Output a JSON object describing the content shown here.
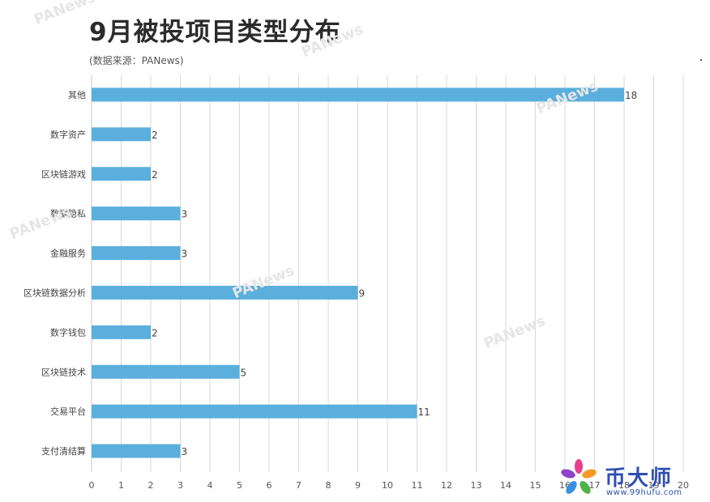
{
  "header": {
    "title": "9月被投项目类型分布",
    "subtitle": "(数据来源：PANews)"
  },
  "watermark_text": "PANews",
  "brand": {
    "name": "币大师",
    "url": "www.99hufu.com"
  },
  "chart_data": {
    "type": "bar",
    "orientation": "horizontal",
    "title": "9月被投项目类型分布",
    "subtitle": "(数据来源：PANews)",
    "categories": [
      "其他",
      "数字资产",
      "区块链游戏",
      "数据隐私",
      "金融服务",
      "区块链数据分析",
      "数字钱包",
      "区块链技术",
      "交易平台",
      "支付清结算"
    ],
    "values": [
      18,
      2,
      2,
      3,
      3,
      9,
      2,
      5,
      11,
      3
    ],
    "xlim": [
      0,
      20
    ],
    "xticks": [
      0,
      1,
      2,
      3,
      4,
      5,
      6,
      7,
      8,
      9,
      10,
      11,
      12,
      13,
      14,
      15,
      16,
      17,
      18,
      19,
      20
    ],
    "grid": true,
    "data_labels": true,
    "legend": "none",
    "bar_color": "#5aafdc",
    "grid_color": "#d9d9d9"
  }
}
